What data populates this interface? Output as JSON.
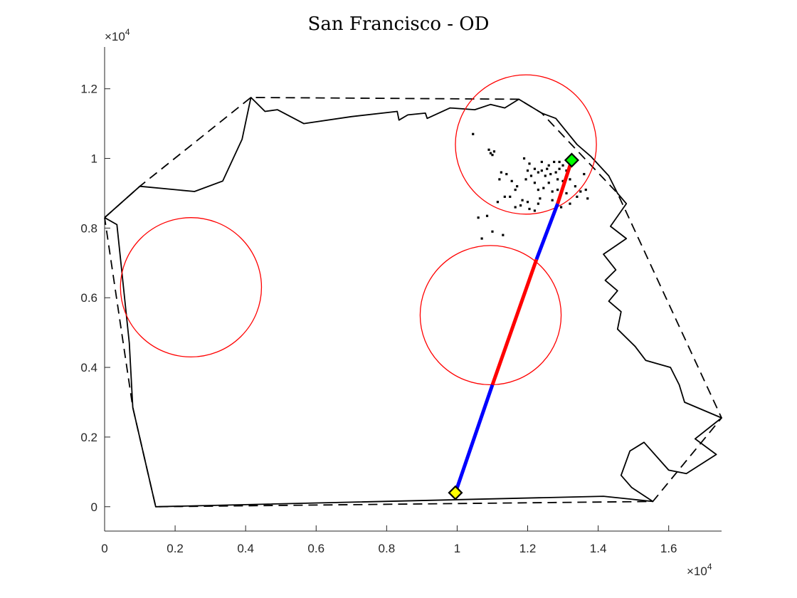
{
  "chart_data": {
    "type": "scatter",
    "title": "San Francisco - OD",
    "xlabel": "",
    "ylabel": "",
    "xlim": [
      0,
      17500
    ],
    "ylim": [
      -700,
      13200
    ],
    "x_ticks": [
      0,
      2000,
      4000,
      6000,
      8000,
      10000,
      12000,
      14000,
      16000
    ],
    "x_tick_labels": [
      "0",
      "0.2",
      "0.4",
      "0.6",
      "0.8",
      "1",
      "1.2",
      "1.4",
      "1.6"
    ],
    "y_ticks": [
      0,
      2000,
      4000,
      6000,
      8000,
      10000,
      12000
    ],
    "y_tick_labels": [
      "0",
      "0.2",
      "0.4",
      "0.6",
      "0.8",
      "1",
      "1.2"
    ],
    "x_multiplier": {
      "base": "×10",
      "exp": "4"
    },
    "y_multiplier": {
      "base": "×10",
      "exp": "4"
    },
    "grid": false,
    "boundary": [
      [
        0,
        8300
      ],
      [
        1000,
        9200
      ],
      [
        2550,
        9050
      ],
      [
        3350,
        9350
      ],
      [
        3900,
        10550
      ],
      [
        4150,
        11750
      ],
      [
        4550,
        11350
      ],
      [
        4900,
        11400
      ],
      [
        5650,
        11000
      ],
      [
        7000,
        11200
      ],
      [
        8300,
        11350
      ],
      [
        8350,
        11100
      ],
      [
        8600,
        11250
      ],
      [
        9100,
        11300
      ],
      [
        9150,
        11150
      ],
      [
        9800,
        11450
      ],
      [
        10500,
        11400
      ],
      [
        10950,
        11550
      ],
      [
        11350,
        11450
      ],
      [
        11750,
        11700
      ],
      [
        12400,
        11300
      ],
      [
        12800,
        11150
      ],
      [
        13400,
        10400
      ],
      [
        13800,
        10050
      ],
      [
        14300,
        9500
      ],
      [
        14550,
        9000
      ],
      [
        14800,
        8700
      ],
      [
        14350,
        8050
      ],
      [
        14800,
        7700
      ],
      [
        14150,
        7250
      ],
      [
        14500,
        6800
      ],
      [
        14200,
        6500
      ],
      [
        14550,
        6200
      ],
      [
        14300,
        5900
      ],
      [
        14650,
        5600
      ],
      [
        14550,
        5100
      ],
      [
        15050,
        4600
      ],
      [
        15350,
        4200
      ],
      [
        16050,
        4000
      ],
      [
        16300,
        3500
      ],
      [
        16450,
        3000
      ],
      [
        17500,
        2550
      ],
      [
        16750,
        1950
      ],
      [
        17350,
        1500
      ],
      [
        16500,
        950
      ],
      [
        16000,
        1050
      ],
      [
        15300,
        1850
      ],
      [
        14900,
        1600
      ],
      [
        14650,
        900
      ],
      [
        14950,
        550
      ],
      [
        15550,
        150
      ],
      [
        14150,
        300
      ],
      [
        1450,
        0
      ],
      [
        800,
        2850
      ],
      [
        700,
        4700
      ],
      [
        350,
        8100
      ],
      [
        0,
        8300
      ]
    ],
    "convex_hull": [
      [
        0,
        8300
      ],
      [
        1000,
        9200
      ],
      [
        4150,
        11750
      ],
      [
        11750,
        11700
      ],
      [
        12400,
        11300
      ],
      [
        14550,
        9000
      ],
      [
        17500,
        2550
      ],
      [
        15550,
        150
      ],
      [
        1450,
        0
      ],
      [
        800,
        2850
      ],
      [
        0,
        8300
      ]
    ],
    "circles": [
      {
        "cx": 2450,
        "cy": 6300,
        "r": 2000
      },
      {
        "cx": 10950,
        "cy": 5500,
        "r": 2000
      },
      {
        "cx": 11950,
        "cy": 10400,
        "r": 2000
      }
    ],
    "od_line": {
      "origin": [
        9950,
        400
      ],
      "destination": [
        13250,
        9950
      ],
      "segments": [
        {
          "from": [
            9950,
            400
          ],
          "to": [
            11000,
            3500
          ],
          "color": "#0000ff"
        },
        {
          "from": [
            11000,
            3500
          ],
          "to": [
            12250,
            7100
          ],
          "color": "#ff0000"
        },
        {
          "from": [
            12250,
            7100
          ],
          "to": [
            12850,
            8700
          ],
          "color": "#0000ff"
        },
        {
          "from": [
            12850,
            8700
          ],
          "to": [
            13250,
            9950
          ],
          "color": "#ff0000"
        }
      ]
    },
    "markers": [
      {
        "name": "origin",
        "x": 9950,
        "y": 400,
        "color": "#ffff00"
      },
      {
        "name": "destination",
        "x": 13250,
        "y": 9950,
        "color": "#00ff00"
      }
    ],
    "demand_points": [
      [
        10450,
        10700
      ],
      [
        10900,
        10250
      ],
      [
        10950,
        10150
      ],
      [
        11050,
        10200
      ],
      [
        11000,
        10100
      ],
      [
        11250,
        9600
      ],
      [
        11200,
        9400
      ],
      [
        11400,
        9550
      ],
      [
        11550,
        9350
      ],
      [
        11650,
        9100
      ],
      [
        11500,
        8900
      ],
      [
        11650,
        8600
      ],
      [
        11850,
        8800
      ],
      [
        12000,
        8750
      ],
      [
        12050,
        8550
      ],
      [
        12200,
        8500
      ],
      [
        11950,
        9400
      ],
      [
        12200,
        9300
      ],
      [
        12300,
        9100
      ],
      [
        12350,
        8850
      ],
      [
        12400,
        9650
      ],
      [
        12500,
        9500
      ],
      [
        12600,
        9300
      ],
      [
        12700,
        9050
      ],
      [
        12700,
        8800
      ],
      [
        12850,
        9400
      ],
      [
        12900,
        9700
      ],
      [
        13000,
        9800
      ],
      [
        12900,
        9900
      ],
      [
        12750,
        9900
      ],
      [
        12600,
        9800
      ],
      [
        12400,
        9900
      ],
      [
        12300,
        9600
      ],
      [
        12100,
        9500
      ],
      [
        12000,
        9650
      ],
      [
        12200,
        9700
      ],
      [
        12650,
        9550
      ],
      [
        12850,
        9100
      ],
      [
        13000,
        9350
      ],
      [
        13200,
        9400
      ],
      [
        13350,
        9200
      ],
      [
        13500,
        9050
      ],
      [
        13650,
        9100
      ],
      [
        13700,
        8850
      ],
      [
        13400,
        8900
      ],
      [
        13200,
        8700
      ],
      [
        12950,
        8600
      ],
      [
        13100,
        9000
      ],
      [
        13600,
        9550
      ],
      [
        11700,
        9200
      ],
      [
        11800,
        8650
      ],
      [
        12300,
        8700
      ],
      [
        12450,
        9150
      ],
      [
        12550,
        9700
      ],
      [
        12800,
        9600
      ],
      [
        13100,
        9650
      ],
      [
        11150,
        8750
      ],
      [
        11350,
        8900
      ],
      [
        10600,
        8300
      ],
      [
        10850,
        8350
      ],
      [
        11000,
        7900
      ],
      [
        11300,
        7800
      ],
      [
        10700,
        7700
      ],
      [
        11900,
        10000
      ],
      [
        12050,
        9850
      ]
    ],
    "colors": {
      "boundary": "#000000",
      "hull": "#000000",
      "circles": "#ff0000",
      "points": "#000000"
    }
  }
}
